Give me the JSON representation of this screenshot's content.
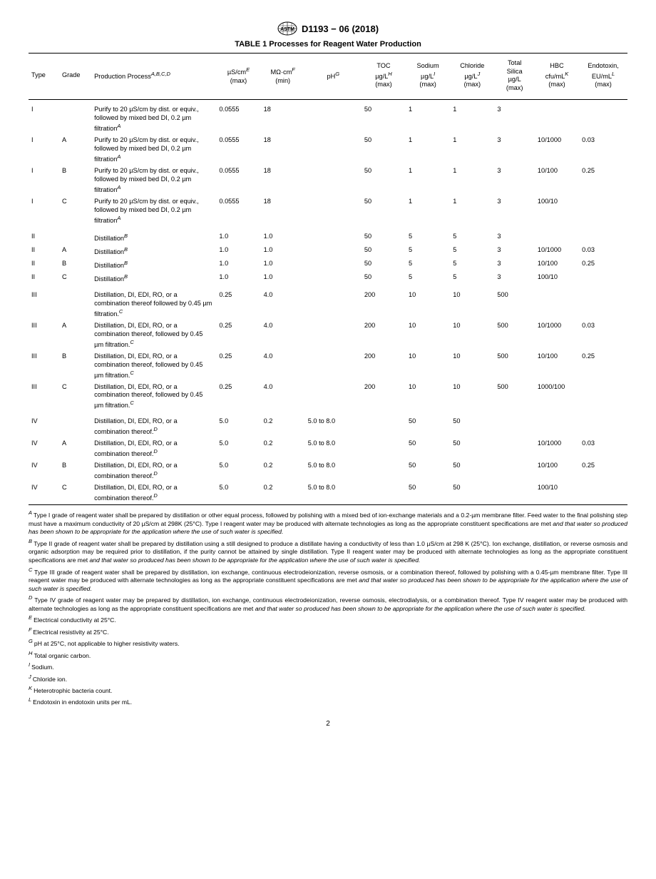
{
  "doc_header": "D1193 − 06 (2018)",
  "table_title": "TABLE 1 Processes for Reagent Water Production",
  "page_number": "2",
  "columns": [
    {
      "label": "Type",
      "sup": ""
    },
    {
      "label": "Grade",
      "sup": ""
    },
    {
      "label": "Production Process",
      "sup": "A,B,C,D"
    },
    {
      "label_top": "µS/cm",
      "sup": "E",
      "label_bot": "(max)"
    },
    {
      "label_top": "MΩ·cm",
      "sup": "F",
      "label_bot": "(min)"
    },
    {
      "label_top": "pH",
      "sup": "G",
      "label_bot": ""
    },
    {
      "label_top": "TOC",
      "label_mid": "µg/L",
      "sup": "H",
      "label_bot": "(max)"
    },
    {
      "label_top": "Sodium",
      "label_mid": "µg/L",
      "sup": "I",
      "label_bot": "(max)"
    },
    {
      "label_top": "Chloride",
      "label_mid": "µg/L",
      "sup": "J",
      "label_bot": "(max)"
    },
    {
      "label_top": "Total",
      "label_mid1": "Silica",
      "label_mid2": "µg/L",
      "label_bot": "(max)"
    },
    {
      "label_top": "HBC",
      "sup": "K",
      "label_mid": "cfu/mL",
      "label_bot": "(max)"
    },
    {
      "label_top": "Endotoxin,",
      "label_mid": "EU/mL",
      "sup": "L",
      "label_bot": "(max)"
    }
  ],
  "rows": [
    {
      "group": "I",
      "type": "I",
      "grade": "",
      "process": "Purify to 20 µS/cm by dist. or equiv., followed by mixed bed DI, 0.2 µm filtration",
      "psup": "A",
      "c": [
        "0.0555",
        "18",
        "",
        "50",
        "1",
        "1",
        "3",
        "",
        ""
      ]
    },
    {
      "type": "I",
      "grade": "A",
      "process": "Purify to 20 µS/cm by dist. or equiv., followed by mixed bed DI, 0.2 µm filtration",
      "psup": "A",
      "c": [
        "0.0555",
        "18",
        "",
        "50",
        "1",
        "1",
        "3",
        "10/1000",
        "0.03"
      ]
    },
    {
      "type": "I",
      "grade": "B",
      "process": "Purify to 20 µS/cm by dist. or equiv., followed by mixed bed DI, 0.2 µm filtration",
      "psup": "A",
      "c": [
        "0.0555",
        "18",
        "",
        "50",
        "1",
        "1",
        "3",
        "10/100",
        "0.25"
      ]
    },
    {
      "type": "I",
      "grade": "C",
      "process": "Purify to 20 µS/cm by dist. or equiv., followed by mixed bed DI, 0.2 µm filtration",
      "psup": "A",
      "c": [
        "0.0555",
        "18",
        "",
        "50",
        "1",
        "1",
        "3",
        "100/10",
        ""
      ]
    },
    {
      "group": "II",
      "type": "II",
      "grade": "",
      "process": "Distillation",
      "psup": "B",
      "c": [
        "1.0",
        "1.0",
        "",
        "50",
        "5",
        "5",
        "3",
        "",
        ""
      ]
    },
    {
      "type": "II",
      "grade": "A",
      "process": "Distillation",
      "psup": "B",
      "c": [
        "1.0",
        "1.0",
        "",
        "50",
        "5",
        "5",
        "3",
        "10/1000",
        "0.03"
      ]
    },
    {
      "type": "II",
      "grade": "B",
      "process": "Distillation",
      "psup": "B",
      "c": [
        "1.0",
        "1.0",
        "",
        "50",
        "5",
        "5",
        "3",
        "10/100",
        "0.25"
      ]
    },
    {
      "type": "II",
      "grade": "C",
      "process": "Distillation",
      "psup": "B",
      "c": [
        "1.0",
        "1.0",
        "",
        "50",
        "5",
        "5",
        "3",
        "100/10",
        ""
      ]
    },
    {
      "group": "III",
      "type": "III",
      "grade": "",
      "process": "Distillation, DI, EDI, RO, or a combination thereof followed by 0.45 µm filtration.",
      "psup": "C",
      "c": [
        "0.25",
        "4.0",
        "",
        "200",
        "10",
        "10",
        "500",
        "",
        ""
      ]
    },
    {
      "type": "III",
      "grade": "A",
      "process": "Distillation, DI, EDI, RO, or a combination thereof, followed by 0.45 µm filtration.",
      "psup": "C",
      "c": [
        "0.25",
        "4.0",
        "",
        "200",
        "10",
        "10",
        "500",
        "10/1000",
        "0.03"
      ]
    },
    {
      "type": "III",
      "grade": "B",
      "process": "Distillation, DI, EDI, RO, or a combination thereof, followed by 0.45 µm filtration.",
      "psup": "C",
      "c": [
        "0.25",
        "4.0",
        "",
        "200",
        "10",
        "10",
        "500",
        "10/100",
        "0.25"
      ]
    },
    {
      "type": "III",
      "grade": "C",
      "process": "Distillation, DI, EDI, RO, or a combination thereof, followed by 0.45 µm filtration.",
      "psup": "C",
      "c": [
        "0.25",
        "4.0",
        "",
        "200",
        "10",
        "10",
        "500",
        "1000/100",
        ""
      ]
    },
    {
      "group": "IV",
      "type": "IV",
      "grade": "",
      "process": "Distillation, DI, EDI, RO, or a combination thereof.",
      "psup": "D",
      "c": [
        "5.0",
        "0.2",
        "5.0 to 8.0",
        "",
        "50",
        "50",
        "",
        "",
        ""
      ]
    },
    {
      "type": "IV",
      "grade": "A",
      "process": "Distillation, DI, EDI, RO, or a combination thereof.",
      "psup": "D",
      "c": [
        "5.0",
        "0.2",
        "5.0 to 8.0",
        "",
        "50",
        "50",
        "",
        "10/1000",
        "0.03"
      ]
    },
    {
      "type": "IV",
      "grade": "B",
      "process": "Distillation, DI, EDI, RO, or a combination thereof.",
      "psup": "D",
      "c": [
        "5.0",
        "0.2",
        "5.0 to 8.0",
        "",
        "50",
        "50",
        "",
        "10/100",
        "0.25"
      ]
    },
    {
      "type": "IV",
      "grade": "C",
      "process": "Distillation, DI, EDI, RO, or a combination thereof.",
      "psup": "D",
      "c": [
        "5.0",
        "0.2",
        "5.0 to 8.0",
        "",
        "50",
        "50",
        "",
        "100/10",
        ""
      ]
    }
  ],
  "footnotes": [
    {
      "label": "A",
      "text": "Type I grade of reagent water shall be prepared by distillation or other equal process, followed by polishing with a mixed bed of ion-exchange materials and a 0.2-µm membrane filter. Feed water to the final polishing step must have a maximum conductivity of 20 µS/cm at 298K (25°C). Type I reagent water may be produced with alternate technologies as long as the appropriate constituent specifications are met ",
      "italic": "and that water so produced has been shown to be appropriate for the application where the use of such water is specified."
    },
    {
      "label": "B",
      "text": "Type II grade of reagent water shall be prepared by distillation using a still designed to produce a distillate having a conductivity of less than 1.0 µS/cm at 298 K (25°C). Ion exchange, distillation, or reverse osmosis and organic adsorption may be required prior to distillation, if the purity cannot be attained by single distillation. Type II reagent water may be produced with alternate technologies as long as the appropriate constituent specifications are met ",
      "italic": "and that water so produced has been shown to be appropriate for the application where the use of such water is specified."
    },
    {
      "label": "C",
      "text": "Type III grade of reagent water shall be prepared by distillation, ion exchange, continuous electrodeionization, reverse osmosis, or a combination thereof, followed by polishing with a 0.45-µm membrane filter. Type III reagent water may be produced with alternate technologies as long as the appropriate constituent specifications are met ",
      "italic": "and that water so produced has been shown to be appropriate for the application where the use of such water is specified."
    },
    {
      "label": "D",
      "text": "Type IV grade of reagent water may be prepared by distillation, ion exchange, continuous electrodeionization, reverse osmosis, electrodialysis, or a combination thereof. Type IV reagent water may be produced with alternate technologies as long as the appropriate constituent specifications are met ",
      "italic": "and that water so produced has been shown to be appropriate for the application where the use of such water is specified."
    },
    {
      "label": "E",
      "text": "Electrical conductivity at 25°C."
    },
    {
      "label": "F",
      "text": "Electrical resistivity at 25°C."
    },
    {
      "label": "G",
      "text": "pH at 25°C, not applicable to higher resistivity waters."
    },
    {
      "label": "H",
      "text": "Total organic carbon."
    },
    {
      "label": "I",
      "text": "Sodium."
    },
    {
      "label": "J",
      "text": "Chloride ion."
    },
    {
      "label": "K",
      "text": "Heterotrophic bacteria count."
    },
    {
      "label": "L",
      "text": "Endotoxin in endotoxin units per mL."
    }
  ]
}
